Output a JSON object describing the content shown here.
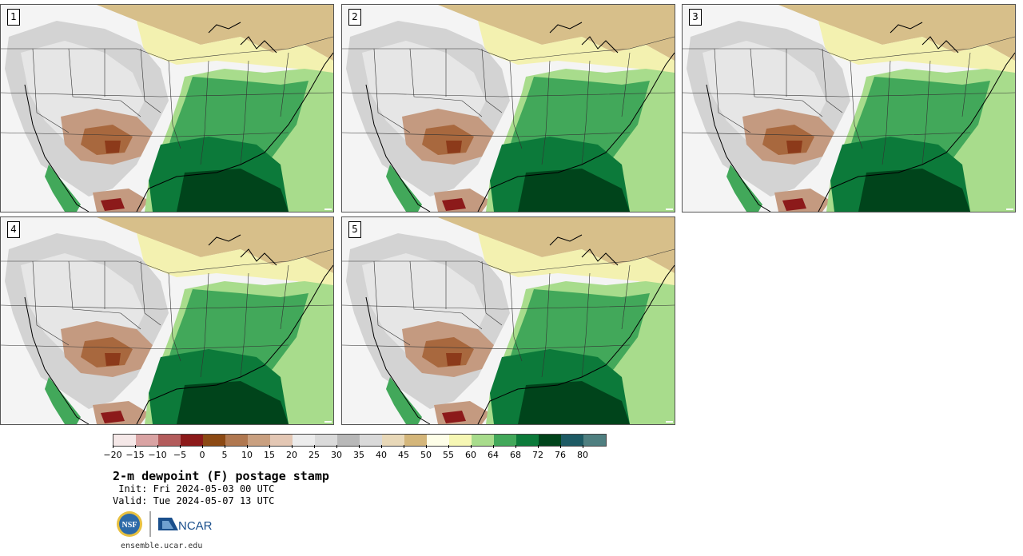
{
  "panels": [
    {
      "label": "1"
    },
    {
      "label": "2"
    },
    {
      "label": "3"
    },
    {
      "label": "4"
    },
    {
      "label": "5"
    }
  ],
  "legend": {
    "ticks": [
      "−20",
      "−15",
      "−10",
      "−5",
      "0",
      "5",
      "10",
      "15",
      "20",
      "25",
      "30",
      "35",
      "40",
      "45",
      "50",
      "55",
      "60",
      "64",
      "68",
      "72",
      "76",
      "80"
    ],
    "colors": [
      "#f5e8e8",
      "#d9a3a3",
      "#b35c5c",
      "#8c1a1a",
      "#8c4a14",
      "#b07850",
      "#c9a080",
      "#e3c7b4",
      "#ececec",
      "#dadada",
      "#b8b8b8",
      "#d9d9d9",
      "#e8d8b8",
      "#d4b67a",
      "#fefee8",
      "#f6f7b4",
      "#a8dc8c",
      "#42a85a",
      "#0c7a3a",
      "#00441b",
      "#1d5a64",
      "#4f7f80"
    ]
  },
  "title": "2-m dewpoint (F) postage stamp",
  "init_label": " Init: Fri 2024-05-03 00 UTC",
  "valid_label": "Valid: Tue 2024-05-07 13 UTC",
  "logos": {
    "nsf": "NSF",
    "ncar": "NCAR"
  },
  "url": "ensemble.ucar.edu"
}
